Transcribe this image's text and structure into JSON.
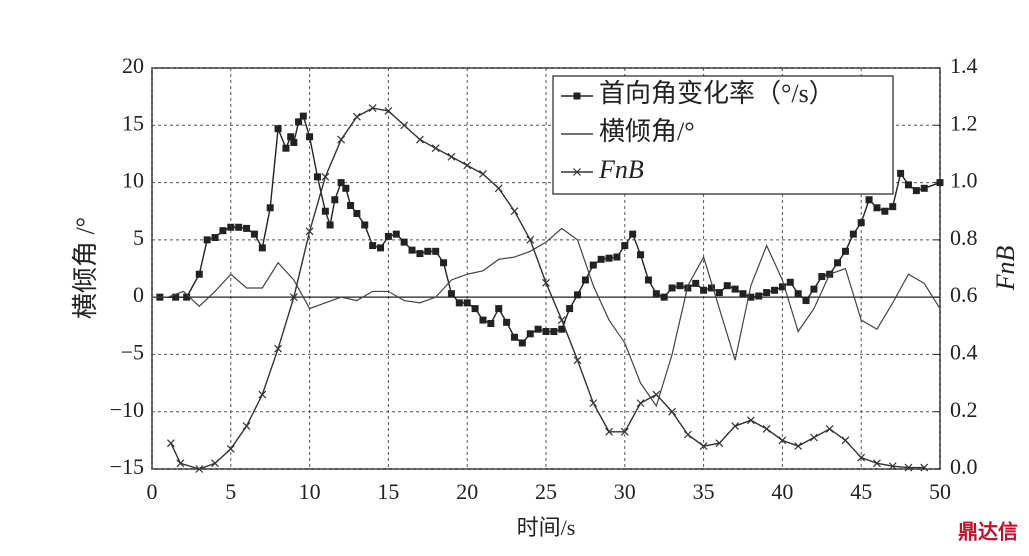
{
  "chart_data": {
    "type": "line",
    "xlabel": "时间/s",
    "ylabel": "横倾角 /°",
    "y2label": "FnB",
    "watermark": "鼎达信",
    "xlim": [
      0,
      50
    ],
    "xticks": [
      0,
      5,
      10,
      15,
      20,
      25,
      30,
      35,
      40,
      45,
      50
    ],
    "ylim": [
      -15,
      20
    ],
    "yticks": [
      {
        "value": -15,
        "label": "−15"
      },
      {
        "value": -10,
        "label": "−10"
      },
      {
        "value": -5,
        "label": "−5"
      },
      0,
      5,
      10,
      15,
      20
    ],
    "y2lim": [
      0,
      1.4
    ],
    "y2ticks": [
      {
        "value": 0,
        "label": "0.0"
      },
      0.2,
      0.4,
      0.6,
      0.8,
      {
        "value": 1,
        "label": "1.0"
      },
      1.2,
      1.4
    ],
    "grid": true,
    "legend": "upper-right",
    "series": [
      {
        "name": "首向角变化率（°/s）",
        "color": "#222222",
        "marker": "square",
        "x": [
          0.5,
          1.5,
          2.2,
          3,
          3.5,
          4,
          4.5,
          5,
          5.5,
          6,
          6.5,
          7,
          7.5,
          8,
          8.5,
          8.8,
          9,
          9.3,
          9.6,
          10,
          10.5,
          11,
          11.3,
          11.6,
          12,
          12.3,
          12.6,
          13,
          13.5,
          14,
          14.5,
          15,
          15.5,
          16,
          16.5,
          17,
          17.5,
          18,
          18.5,
          19,
          19.5,
          20,
          20.5,
          21,
          21.5,
          22,
          22.5,
          23,
          23.5,
          24,
          24.5,
          25,
          25.5,
          26,
          26.5,
          27,
          27.5,
          28,
          28.5,
          29,
          29.5,
          30,
          30.5,
          31,
          31.5,
          32,
          32.5,
          33,
          33.5,
          34,
          34.5,
          35,
          35.5,
          36,
          36.5,
          37,
          37.5,
          38,
          38.5,
          39,
          39.5,
          40,
          40.5,
          41,
          41.5,
          42,
          42.5,
          43,
          43.5,
          44,
          44.5,
          45,
          45.5,
          46,
          46.5,
          47,
          47.5,
          48,
          48.5,
          49,
          50
        ],
        "values": [
          0,
          0,
          0,
          2,
          5,
          5.2,
          5.8,
          6.1,
          6.1,
          6,
          5.5,
          4.3,
          7.8,
          14.7,
          13,
          14,
          13.5,
          15.3,
          15.8,
          14,
          10.5,
          7.5,
          6.3,
          8.5,
          10,
          9.5,
          8,
          7.3,
          6.3,
          4.5,
          4.3,
          5.3,
          5.5,
          4.8,
          4.1,
          3.8,
          4,
          4,
          3,
          0.3,
          -0.5,
          -0.5,
          -1,
          -2,
          -2.3,
          -1,
          -2.2,
          -3.5,
          -4,
          -3.2,
          -2.8,
          -3,
          -3,
          -2.8,
          -1,
          0.2,
          1.5,
          2.8,
          3.3,
          3.4,
          3.5,
          4.5,
          5.5,
          3.7,
          1.5,
          0.3,
          0,
          0.8,
          1,
          0.8,
          1.2,
          0.6,
          0.8,
          0.4,
          1,
          0.7,
          0.3,
          0,
          0.1,
          0.4,
          0.6,
          0.9,
          1.3,
          0.3,
          -0.3,
          0.7,
          1.8,
          2,
          3,
          4,
          5.5,
          6.5,
          8.5,
          7.8,
          7.5,
          7.9,
          10.8,
          9.8,
          9.3,
          9.5,
          10
        ]
      },
      {
        "name": "横倾角/°",
        "color": "#444444",
        "marker": "none",
        "x": [
          0,
          1,
          2,
          3,
          4,
          5,
          6,
          7,
          8,
          9,
          10,
          11,
          12,
          13,
          14,
          15,
          16,
          17,
          18,
          19,
          20,
          21,
          22,
          23,
          24,
          25,
          26,
          27,
          28,
          29,
          30,
          31,
          32,
          33,
          34,
          35,
          36,
          37,
          38,
          39,
          40,
          41,
          42,
          43,
          44,
          45,
          46,
          47,
          48,
          49,
          50
        ],
        "values": [
          0,
          0,
          0.5,
          -0.8,
          0.5,
          2,
          0.8,
          0.8,
          3,
          1.5,
          -1,
          -0.5,
          0,
          -0.3,
          0.5,
          0.5,
          -0.3,
          -0.5,
          0,
          1.5,
          2,
          2.3,
          3.3,
          3.5,
          4,
          4.8,
          6,
          5,
          1,
          -2,
          -4,
          -7.5,
          -9.5,
          -5,
          1,
          3.5,
          -1,
          -5.5,
          1,
          4.5,
          1.5,
          -3,
          -1,
          2,
          2.5,
          -2,
          -2.8,
          -0.5,
          2,
          1.2,
          -1
        ]
      },
      {
        "name": "FnB",
        "color": "#333333",
        "marker": "x",
        "axis": "y2",
        "x": [
          1.2,
          1.8,
          3,
          4,
          5,
          6,
          7,
          8,
          9,
          10,
          11,
          12,
          13,
          14,
          15,
          16,
          17,
          18,
          19,
          20,
          21,
          22,
          23,
          24,
          25,
          26,
          27,
          28,
          29,
          30,
          31,
          32,
          33,
          34,
          35,
          36,
          37,
          38,
          39,
          40,
          41,
          42,
          43,
          44,
          45,
          46,
          47,
          48,
          49
        ],
        "values": [
          0.09,
          0.02,
          0,
          0.02,
          0.07,
          0.15,
          0.26,
          0.42,
          0.6,
          0.83,
          1.02,
          1.15,
          1.23,
          1.26,
          1.25,
          1.2,
          1.15,
          1.12,
          1.09,
          1.06,
          1.03,
          0.98,
          0.9,
          0.8,
          0.65,
          0.52,
          0.38,
          0.23,
          0.13,
          0.13,
          0.23,
          0.26,
          0.2,
          0.12,
          0.08,
          0.09,
          0.15,
          0.17,
          0.14,
          0.1,
          0.08,
          0.11,
          0.14,
          0.1,
          0.04,
          0.02,
          0.01,
          0.005,
          0.005
        ]
      }
    ]
  }
}
